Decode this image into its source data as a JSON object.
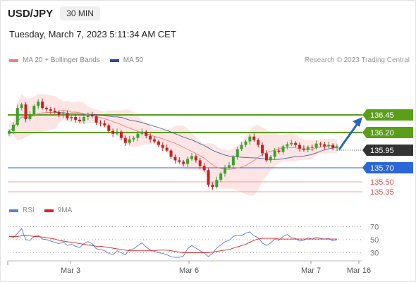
{
  "header": {
    "symbol": "USD/JPY",
    "timeframe": "30 MIN",
    "datetime": "Tuesday, March 7, 2023 5:11:34 AM CET"
  },
  "legend": {
    "ma20_label": "MA 20 + Bollinger Bands",
    "ma50_label": "MA 50",
    "ma20_color": "#f08080",
    "ma50_color": "#2a4e8a",
    "credit": "Research © 2023 Trading Central"
  },
  "rsi_legend": {
    "rsi_label": "RSI",
    "ma9_label": "9MA",
    "rsi_color": "#5b7fd6",
    "ma9_color": "#e02020"
  },
  "chart_data": {
    "type": "candlestick",
    "x_ticks": [
      "Mar 3",
      "Mar 6",
      "Mar 7",
      "Mar 16"
    ],
    "levels": [
      {
        "value": "136.45",
        "color": "#5a9e1a",
        "style": "badge"
      },
      {
        "value": "136.20",
        "color": "#5a9e1a",
        "style": "badge"
      },
      {
        "value": "135.95",
        "color": "#333333",
        "style": "badge"
      },
      {
        "value": "135.70",
        "color": "#2a66d8",
        "style": "badge"
      },
      {
        "value": "135.50",
        "color": "#e05050",
        "style": "text"
      },
      {
        "value": "135.35",
        "color": "#e05050",
        "style": "text"
      }
    ],
    "price_ylim": [
      135.25,
      136.8
    ],
    "candles_close": [
      136.22,
      136.31,
      136.55,
      136.6,
      136.39,
      136.46,
      136.58,
      136.64,
      136.55,
      136.53,
      136.51,
      136.49,
      136.45,
      136.47,
      136.4,
      136.42,
      136.38,
      136.36,
      136.42,
      136.45,
      136.43,
      136.34,
      136.33,
      136.3,
      136.22,
      136.18,
      136.21,
      136.12,
      136.05,
      136.1,
      136.12,
      136.18,
      136.21,
      136.15,
      136.1,
      136.07,
      136.02,
      135.98,
      135.94,
      135.85,
      135.8,
      135.78,
      135.75,
      135.82,
      135.86,
      135.8,
      135.72,
      135.66,
      135.45,
      135.42,
      135.52,
      135.61,
      135.7,
      135.73,
      135.85,
      135.96,
      136.02,
      136.07,
      136.14,
      136.09,
      136.02,
      135.9,
      135.8,
      135.85,
      135.94,
      135.92,
      136.0,
      136.03,
      136.05,
      136.02,
      135.97,
      135.95,
      135.99,
      135.98,
      136.04,
      136.03,
      136.0,
      136.02,
      135.98,
      136.0
    ],
    "rsi_ylim": [
      20,
      80
    ],
    "rsi_ticks": [
      70,
      50,
      30
    ],
    "rsi": [
      56,
      53,
      60,
      67,
      50,
      49,
      55,
      57,
      51,
      50,
      48,
      46,
      44,
      47,
      41,
      43,
      40,
      38,
      44,
      47,
      44,
      36,
      35,
      33,
      29,
      27,
      33,
      30,
      27,
      35,
      36,
      41,
      45,
      39,
      34,
      32,
      30,
      29,
      27,
      24,
      23,
      23,
      25,
      36,
      41,
      37,
      33,
      30,
      24,
      29,
      37,
      42,
      47,
      49,
      55,
      57,
      56,
      60,
      62,
      56,
      53,
      45,
      41,
      45,
      51,
      49,
      55,
      58,
      53,
      52,
      48,
      49,
      53,
      51,
      54,
      52,
      51,
      52,
      48,
      50
    ],
    "rsi_ma9": [
      55,
      55,
      55,
      56,
      56,
      56,
      55,
      55,
      54,
      53,
      52,
      51,
      49,
      48,
      47,
      46,
      45,
      44,
      43,
      42,
      41,
      40,
      40,
      39,
      38,
      37,
      36,
      35,
      34,
      33,
      33,
      33,
      33,
      33,
      33,
      33,
      34,
      34,
      34,
      33,
      32,
      31,
      30,
      30,
      30,
      30,
      30,
      30,
      30,
      31,
      32,
      33,
      34,
      35,
      37,
      39,
      41,
      43,
      46,
      49,
      51,
      52,
      52,
      52,
      52,
      51,
      51,
      51,
      51,
      51,
      51,
      51,
      51,
      51,
      51,
      51,
      51,
      51,
      51,
      51
    ]
  }
}
